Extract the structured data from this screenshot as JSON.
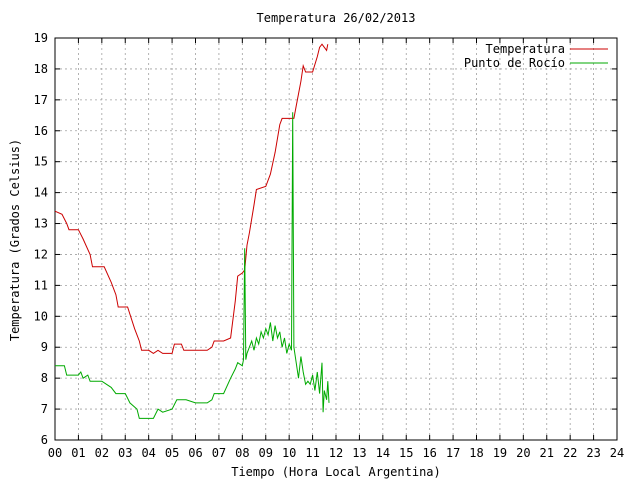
{
  "chart_data": {
    "type": "line",
    "title": "Temperatura 26/02/2013",
    "xlabel": "Tiempo (Hora Local Argentina)",
    "ylabel": "Temperatura (Grados Celsius)",
    "xlim": [
      0,
      24
    ],
    "ylim": [
      6,
      19
    ],
    "x_ticks": [
      "00",
      "01",
      "02",
      "03",
      "04",
      "05",
      "06",
      "07",
      "08",
      "09",
      "10",
      "11",
      "12",
      "13",
      "14",
      "15",
      "16",
      "17",
      "18",
      "19",
      "20",
      "21",
      "22",
      "23",
      "24"
    ],
    "y_ticks": [
      "6",
      "7",
      "8",
      "9",
      "10",
      "11",
      "12",
      "13",
      "14",
      "15",
      "16",
      "17",
      "18",
      "19"
    ],
    "grid": true,
    "legend_position": "top-right",
    "series": [
      {
        "name": "Temperatura",
        "color": "#cc0000",
        "points": [
          [
            0.0,
            13.4
          ],
          [
            0.3,
            13.3
          ],
          [
            0.5,
            13.0
          ],
          [
            0.6,
            12.8
          ],
          [
            1.0,
            12.8
          ],
          [
            1.2,
            12.5
          ],
          [
            1.5,
            12.0
          ],
          [
            1.6,
            11.6
          ],
          [
            2.1,
            11.6
          ],
          [
            2.4,
            11.1
          ],
          [
            2.6,
            10.7
          ],
          [
            2.7,
            10.3
          ],
          [
            3.1,
            10.3
          ],
          [
            3.4,
            9.6
          ],
          [
            3.6,
            9.2
          ],
          [
            3.7,
            8.9
          ],
          [
            4.0,
            8.9
          ],
          [
            4.2,
            8.8
          ],
          [
            4.4,
            8.9
          ],
          [
            4.6,
            8.8
          ],
          [
            5.0,
            8.8
          ],
          [
            5.1,
            9.1
          ],
          [
            5.4,
            9.1
          ],
          [
            5.5,
            8.9
          ],
          [
            6.0,
            8.9
          ],
          [
            6.5,
            8.9
          ],
          [
            6.7,
            9.0
          ],
          [
            6.8,
            9.2
          ],
          [
            7.2,
            9.2
          ],
          [
            7.5,
            9.3
          ],
          [
            7.7,
            10.5
          ],
          [
            7.8,
            11.3
          ],
          [
            8.0,
            11.4
          ],
          [
            8.1,
            11.5
          ],
          [
            8.2,
            12.3
          ],
          [
            8.3,
            12.7
          ],
          [
            8.5,
            13.6
          ],
          [
            8.6,
            14.1
          ],
          [
            9.0,
            14.2
          ],
          [
            9.2,
            14.6
          ],
          [
            9.4,
            15.3
          ],
          [
            9.6,
            16.2
          ],
          [
            9.7,
            16.4
          ],
          [
            10.2,
            16.4
          ],
          [
            10.3,
            16.8
          ],
          [
            10.5,
            17.6
          ],
          [
            10.6,
            18.1
          ],
          [
            10.7,
            17.9
          ],
          [
            11.0,
            17.9
          ],
          [
            11.2,
            18.4
          ],
          [
            11.3,
            18.7
          ],
          [
            11.4,
            18.8
          ],
          [
            11.5,
            18.7
          ],
          [
            11.6,
            18.6
          ],
          [
            11.65,
            18.8
          ]
        ]
      },
      {
        "name": "Punto de Rocío",
        "color": "#00aa00",
        "points": [
          [
            0.0,
            8.4
          ],
          [
            0.4,
            8.4
          ],
          [
            0.5,
            8.1
          ],
          [
            1.0,
            8.1
          ],
          [
            1.1,
            8.2
          ],
          [
            1.2,
            8.0
          ],
          [
            1.4,
            8.1
          ],
          [
            1.5,
            7.9
          ],
          [
            2.0,
            7.9
          ],
          [
            2.2,
            7.8
          ],
          [
            2.4,
            7.7
          ],
          [
            2.6,
            7.5
          ],
          [
            3.0,
            7.5
          ],
          [
            3.2,
            7.2
          ],
          [
            3.5,
            7.0
          ],
          [
            3.6,
            6.7
          ],
          [
            4.2,
            6.7
          ],
          [
            4.4,
            7.0
          ],
          [
            4.6,
            6.9
          ],
          [
            5.0,
            7.0
          ],
          [
            5.2,
            7.3
          ],
          [
            5.6,
            7.3
          ],
          [
            6.0,
            7.2
          ],
          [
            6.5,
            7.2
          ],
          [
            6.7,
            7.3
          ],
          [
            6.8,
            7.5
          ],
          [
            7.2,
            7.5
          ],
          [
            7.5,
            8.0
          ],
          [
            7.7,
            8.3
          ],
          [
            7.8,
            8.5
          ],
          [
            8.0,
            8.4
          ],
          [
            8.05,
            8.6
          ],
          [
            8.1,
            12.2
          ],
          [
            8.15,
            8.6
          ],
          [
            8.2,
            8.8
          ],
          [
            8.4,
            9.2
          ],
          [
            8.5,
            8.9
          ],
          [
            8.6,
            9.3
          ],
          [
            8.7,
            9.1
          ],
          [
            8.8,
            9.5
          ],
          [
            8.9,
            9.3
          ],
          [
            9.0,
            9.6
          ],
          [
            9.1,
            9.4
          ],
          [
            9.2,
            9.8
          ],
          [
            9.3,
            9.2
          ],
          [
            9.4,
            9.7
          ],
          [
            9.5,
            9.3
          ],
          [
            9.6,
            9.5
          ],
          [
            9.7,
            9.0
          ],
          [
            9.8,
            9.3
          ],
          [
            9.9,
            8.8
          ],
          [
            10.0,
            9.1
          ],
          [
            10.1,
            8.9
          ],
          [
            10.15,
            16.6
          ],
          [
            10.2,
            9.0
          ],
          [
            10.3,
            8.5
          ],
          [
            10.4,
            8.0
          ],
          [
            10.5,
            8.7
          ],
          [
            10.6,
            8.2
          ],
          [
            10.7,
            7.8
          ],
          [
            10.8,
            7.9
          ],
          [
            10.9,
            7.8
          ],
          [
            11.0,
            8.1
          ],
          [
            11.1,
            7.6
          ],
          [
            11.2,
            8.2
          ],
          [
            11.3,
            7.5
          ],
          [
            11.4,
            8.5
          ],
          [
            11.45,
            6.9
          ],
          [
            11.5,
            7.6
          ],
          [
            11.6,
            7.3
          ],
          [
            11.65,
            7.9
          ],
          [
            11.7,
            7.2
          ]
        ]
      }
    ]
  }
}
